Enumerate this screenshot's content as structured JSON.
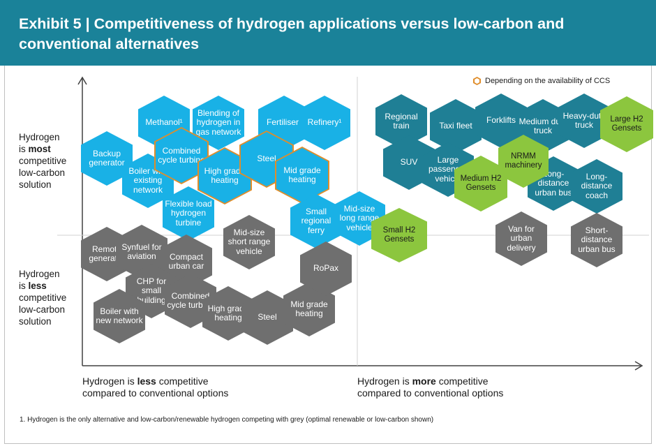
{
  "header": {
    "title": "Exhibit 5 | Competitiveness of hydrogen applications versus low-carbon and conventional alternatives"
  },
  "legend": {
    "label": "Depending on the availability of CCS"
  },
  "axes": {
    "y_top": [
      "Hydrogen",
      "is most",
      "competitive",
      "low-carbon",
      "solution"
    ],
    "y_bottom": [
      "Hydrogen",
      "is less",
      "competitive",
      "low-carbon",
      "solution"
    ],
    "x_left": [
      "Hydrogen is less competitive",
      "compared to conventional options"
    ],
    "x_right": [
      "Hydrogen is more competitive",
      "compared to conventional options"
    ]
  },
  "hexagons": {
    "methanol": "Methanol¹",
    "blending": "Blending of hydrogen in gas network",
    "fertiliser": "Fertiliser¹",
    "refinery": "Refinery¹",
    "backup": "Backup generator",
    "boiler_existing": "Boiler with existing network",
    "combined_blue": "Combined cycle turbine",
    "high_grade_blue": "High grade heating",
    "steel_blue": "Steel",
    "mid_grade_blue": "Mid grade heating",
    "flexible_load": "Flexible load hydrogen turbine",
    "small_ferry": "Small regional ferry",
    "midsize_long": "Mid-size long range vehicle",
    "regional_train": "Regional train",
    "taxi": "Taxi fleet",
    "forklifts": "Forklifts",
    "medium_truck": "Medium duty truck",
    "heavy_truck": "Heavy-duty truck",
    "suv": "SUV",
    "large_passenger": "Large passenger vehicle",
    "long_urban_bus": "Long-distance urban bus",
    "long_coach": "Long-distance coach",
    "van": "Van for urban delivery",
    "short_urban_bus": "Short-distance urban bus",
    "remote_gen": "Remote generator",
    "synfuel": "Synfuel for aviation",
    "compact_car": "Compact urban car",
    "midsize_short": "Mid-size short range vehicle",
    "chp": "CHP for small building",
    "boiler_new": "Boiler with new network",
    "combined_grey": "Combined cycle turbine",
    "high_grade_grey": "High grade heating",
    "steel_grey": "Steel",
    "mid_grade_grey": "Mid grade heating",
    "ropax": "RoPax",
    "large_h2": "Large H2 Gensets",
    "nrmm": "NRMM machinery",
    "medium_h2": "Medium H2 Gensets",
    "small_h2": "Small H2 Gensets"
  },
  "footnote": "1.  Hydrogen is the only alternative and low-carbon/renewable hydrogen competing with grey (optimal renewable or low-carbon shown)",
  "colors": {
    "header": "#1a8299",
    "blue": "#19b1e6",
    "teal": "#1f7f95",
    "grey": "#6f6f6f",
    "green": "#8cc63e",
    "ccs_outline": "#e08d2a"
  }
}
